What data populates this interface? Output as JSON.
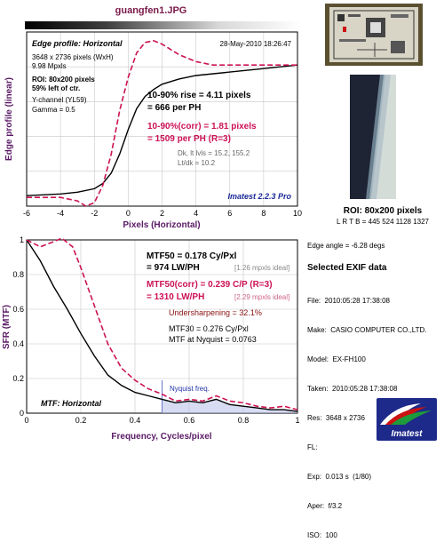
{
  "title": "guangfen1.JPG",
  "edge_panel": {
    "heading": "Edge profile: Horizontal",
    "date": "28-May-2010 18:26:47",
    "dims": "3648 x 2736 pixels (WxH)",
    "mpxls": "9.98 Mpxls",
    "roi": "ROI: 80x200 pixels",
    "roi_pos": "59% left of ctr.",
    "channel": "Y-channel (YL59)",
    "gamma": "Gamma = 0.5",
    "rise": "10-90% rise = 4.11 pixels",
    "per_ph": "= 666 per PH",
    "rise_corr": "10-90%(corr) = 1.81 pixels",
    "per_ph_corr": "= 1509 per PH  (R=3)",
    "dk": "Dk, lt lvls = 15.2, 155.2",
    "ltdk": "Lt/dk = 10.2",
    "brand": "Imatest 2.2.3 Pro"
  },
  "mtf_panel": {
    "mtf50": "MTF50 = 0.178 Cy/Pxl",
    "mtf50_lw": "= 974 LW/PH",
    "ideal1": "[1.26 mpxls ideal]",
    "mtf50_corr": "MTF50(corr) = 0.239 C/P  (R=3)",
    "mtf50_corr_lw": "= 1310 LW/PH",
    "ideal2": "[2.29 mpxls ideal]",
    "under": "Undersharpening = 32.1%",
    "mtf30": "MTF30 = 0.276 Cy/Pxl",
    "nyq_mtf": "MTF at Nyquist = 0.0763",
    "nyq_label": "Nyquist freq.",
    "heading": "MTF: Horizontal"
  },
  "chart_data": [
    {
      "type": "line",
      "title": "Edge profile: Horizontal",
      "xlabel": "Pixels (Horizontal)",
      "ylabel": "Edge profile (linear)",
      "xlim": [
        -6,
        10
      ],
      "ylim": [
        0,
        1
      ],
      "xticks": [
        "-6",
        "-4",
        "-2",
        "0",
        "2",
        "4",
        "6",
        "8",
        "10"
      ],
      "grid": true,
      "series": [
        {
          "color": "#000000",
          "x": [
            -6,
            -4,
            -3,
            -2,
            -1.5,
            -1,
            -0.5,
            0,
            0.5,
            1,
            1.5,
            2,
            3,
            4,
            6,
            8,
            10
          ],
          "y": [
            0.06,
            0.07,
            0.08,
            0.1,
            0.13,
            0.19,
            0.3,
            0.44,
            0.56,
            0.63,
            0.67,
            0.7,
            0.73,
            0.75,
            0.77,
            0.79,
            0.81
          ]
        },
        {
          "color": "#cc1155",
          "style": "dashed",
          "x": [
            -6,
            -4,
            -3,
            -2.5,
            -2,
            -1.5,
            -1,
            -0.5,
            0,
            0.5,
            1,
            1.5,
            2,
            3,
            4,
            5,
            6,
            8,
            10
          ],
          "y": [
            0.05,
            0.05,
            0.03,
            0.0,
            0.02,
            0.12,
            0.3,
            0.55,
            0.74,
            0.88,
            0.94,
            0.95,
            0.93,
            0.87,
            0.83,
            0.81,
            0.81,
            0.81,
            0.81
          ]
        }
      ]
    },
    {
      "type": "line",
      "title": "MTF: Horizontal",
      "xlabel": "Frequency, Cycles/pixel",
      "ylabel": "SFR (MTF)",
      "xlim": [
        0,
        1
      ],
      "ylim": [
        0,
        1
      ],
      "xticks": [
        "0",
        "0.2",
        "0.4",
        "0.6",
        "0.8",
        "1"
      ],
      "yticks": [
        "0",
        "0.2",
        "0.4",
        "0.6",
        "0.8",
        "1"
      ],
      "grid": true,
      "nyquist_x": 0.5,
      "series": [
        {
          "color": "#000000",
          "x": [
            0,
            0.05,
            0.1,
            0.15,
            0.2,
            0.25,
            0.3,
            0.35,
            0.4,
            0.45,
            0.5,
            0.55,
            0.6,
            0.65,
            0.7,
            0.75,
            0.8,
            0.85,
            0.9,
            0.95,
            1.0
          ],
          "y": [
            1.0,
            0.88,
            0.73,
            0.6,
            0.46,
            0.33,
            0.22,
            0.16,
            0.12,
            0.1,
            0.08,
            0.06,
            0.07,
            0.06,
            0.08,
            0.05,
            0.04,
            0.03,
            0.02,
            0.02,
            0.01
          ]
        },
        {
          "color": "#cc1155",
          "style": "dashed",
          "x": [
            0,
            0.05,
            0.1,
            0.13,
            0.17,
            0.2,
            0.25,
            0.3,
            0.35,
            0.4,
            0.45,
            0.5,
            0.55,
            0.6,
            0.65,
            0.7,
            0.75,
            0.8,
            0.85,
            0.9,
            0.95,
            1.0
          ],
          "y": [
            1.0,
            0.96,
            0.99,
            1.01,
            0.96,
            0.84,
            0.62,
            0.4,
            0.26,
            0.19,
            0.14,
            0.11,
            0.07,
            0.08,
            0.07,
            0.1,
            0.07,
            0.06,
            0.04,
            0.03,
            0.04,
            0.02
          ]
        }
      ]
    }
  ],
  "roi_caption": "ROI: 80x200 pixels",
  "roi_coords": "L R  T B = 445 524   1128 1327",
  "edge_angle": "Edge angle = -6.28 degs",
  "exif_title": "Selected EXIF data",
  "exif": [
    "File:  2010:05:28 17:38:08",
    "Make:  CASIO COMPUTER CO.,LTD.",
    "Model:  EX-FH100",
    "Taken:  2010:05:28 17:38:08",
    "Res:  3648 x 2736",
    "FL:",
    "Exp:  0.013 s  (1/80)",
    "Aper:  f/3.2",
    "ISO:  100"
  ],
  "logo_text": "Imatest"
}
